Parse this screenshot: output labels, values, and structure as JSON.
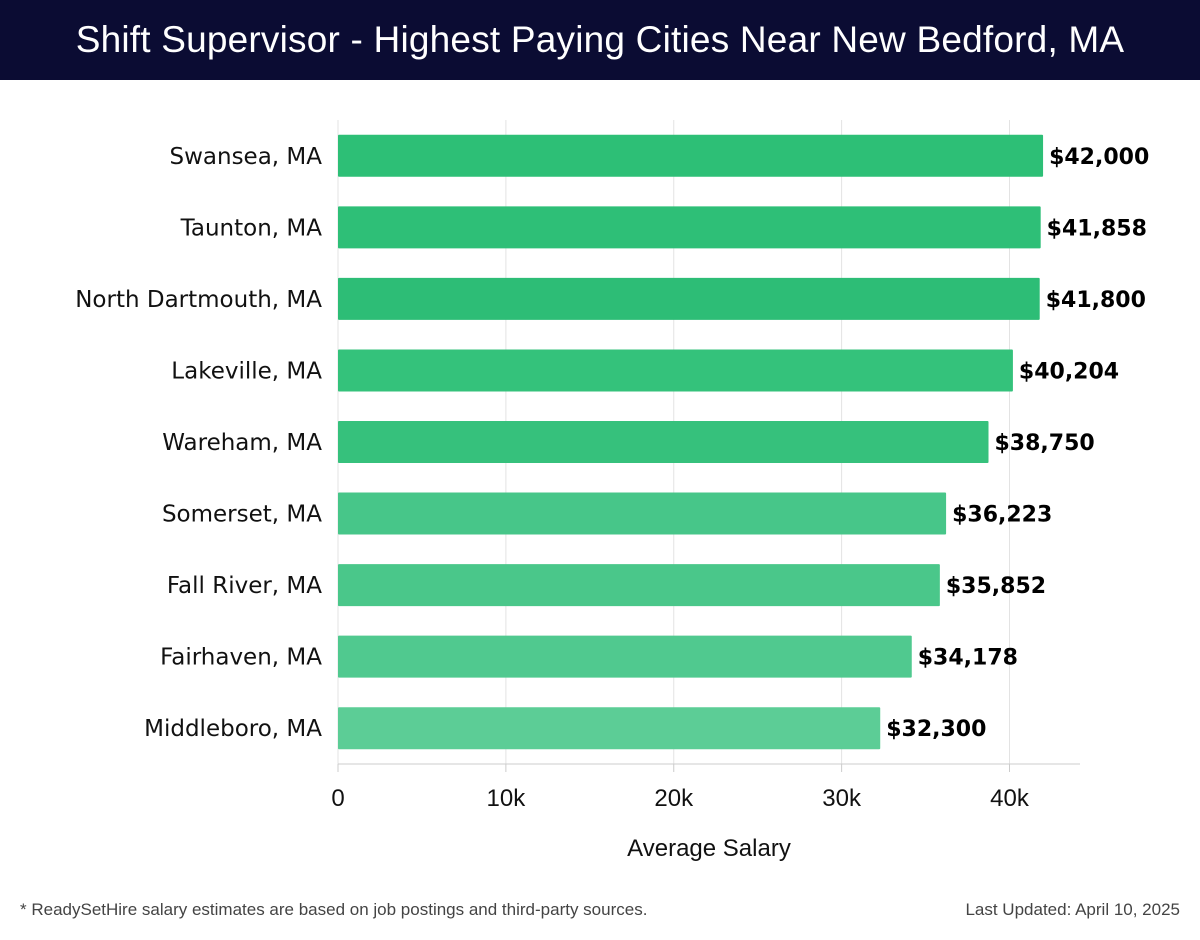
{
  "header": {
    "title": "Shift Supervisor - Highest Paying Cities Near New Bedford, MA"
  },
  "chart_data": {
    "type": "bar",
    "orientation": "horizontal",
    "title": "Shift Supervisor - Highest Paying Cities Near New Bedford, MA",
    "xlabel": "Average Salary",
    "ylabel": "",
    "xlim": [
      0,
      44200
    ],
    "xticks": [
      0,
      10000,
      20000,
      30000,
      40000
    ],
    "xtick_labels": [
      "0",
      "10k",
      "20k",
      "30k",
      "40k"
    ],
    "grid": true,
    "categories": [
      "Swansea, MA",
      "Taunton, MA",
      "North Dartmouth, MA",
      "Lakeville, MA",
      "Wareham, MA",
      "Somerset, MA",
      "Fall River, MA",
      "Fairhaven, MA",
      "Middleboro, MA"
    ],
    "values": [
      42000,
      41858,
      41800,
      40204,
      38750,
      36223,
      35852,
      34178,
      32300
    ],
    "value_labels": [
      "$42,000",
      "$41,858",
      "$41,800",
      "$40,204",
      "$38,750",
      "$36,223",
      "$35,852",
      "$34,178",
      "$32,300"
    ],
    "bar_colors": [
      "#2dbf76",
      "#2ebf77",
      "#2dbd76",
      "#34c27b",
      "#36c17c",
      "#47c689",
      "#4ac78a",
      "#50c98f",
      "#5ccd96"
    ]
  },
  "footer": {
    "note": "* ReadySetHire salary estimates are based on job postings and third-party sources.",
    "updated": "Last Updated: April 10, 2025"
  }
}
